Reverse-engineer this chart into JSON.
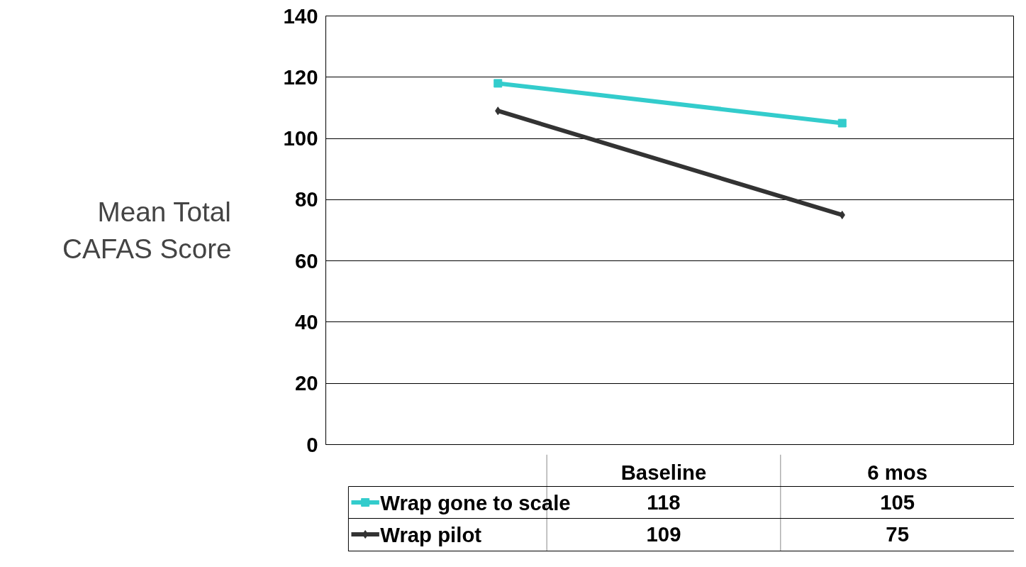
{
  "chart_data": {
    "type": "line",
    "ylabel": "Mean Total CAFAS Score",
    "categories": [
      "Baseline",
      "6 mos"
    ],
    "series": [
      {
        "name": "Wrap gone to scale",
        "color": "#33cccc",
        "values": [
          118,
          105
        ],
        "marker": "square"
      },
      {
        "name": "Wrap pilot",
        "color": "#333333",
        "values": [
          109,
          75
        ],
        "marker": "diamond"
      }
    ],
    "ylim": [
      0,
      140
    ],
    "yticks": [
      0,
      20,
      40,
      60,
      80,
      100,
      120,
      140
    ],
    "grid": "y",
    "legend": "bottom",
    "data_labels": true,
    "line_style": "solid"
  }
}
